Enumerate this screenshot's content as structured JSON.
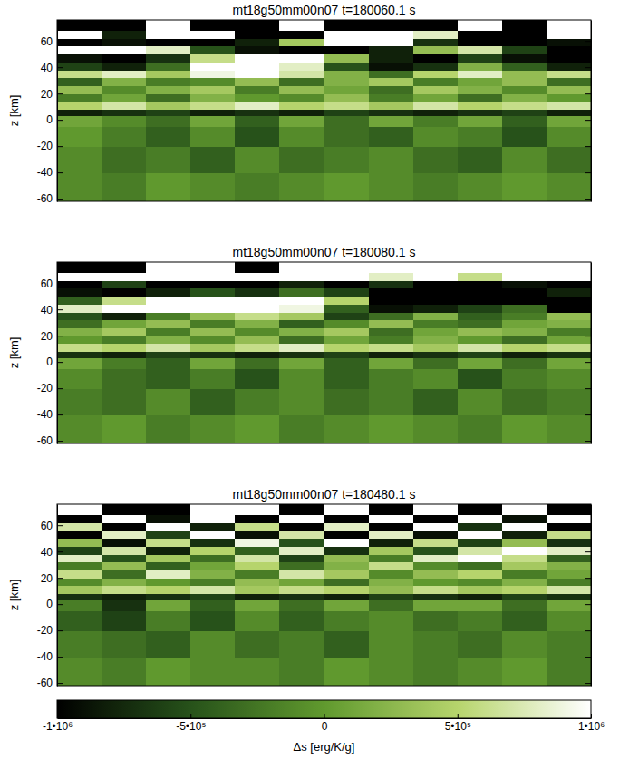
{
  "chart_data": [
    {
      "type": "heatmap",
      "title": "mt18g50mm00n07  t=180060.1 s",
      "y_label": "z [km]",
      "ylim": [
        -62,
        76
      ],
      "yticks": [
        -60,
        -40,
        -20,
        0,
        20,
        40,
        60
      ],
      "tick_labels": "y",
      "z_edges": [
        -62,
        -40,
        -20,
        -5,
        3,
        8,
        14,
        20,
        26,
        32,
        38,
        44,
        50,
        56,
        62,
        68,
        76
      ],
      "cells": [
        [
          -100000.0,
          -200000.0,
          0,
          -100000.0,
          -200000.0,
          -100000.0,
          0,
          -100000.0,
          -200000.0,
          -100000.0,
          0,
          -100000.0
        ],
        [
          -100000.0,
          -300000.0,
          -200000.0,
          -400000.0,
          -100000.0,
          -300000.0,
          -200000.0,
          -100000.0,
          -300000.0,
          -400000.0,
          -100000.0,
          -300000.0
        ],
        [
          0,
          -200000.0,
          -400000.0,
          -100000.0,
          -500000.0,
          -100000.0,
          -300000.0,
          -400000.0,
          -100000.0,
          -200000.0,
          -500000.0,
          -100000.0
        ],
        [
          100000.0,
          -100000.0,
          -300000.0,
          100000.0,
          -400000.0,
          100000.0,
          -300000.0,
          100000.0,
          -200000.0,
          100000.0,
          -400000.0,
          100000.0
        ],
        [
          -800000.0,
          -700000.0,
          -600000.0,
          -800000.0,
          -700000.0,
          -800000.0,
          -600000.0,
          -700000.0,
          -800000.0,
          -700000.0,
          -600000.0,
          -800000.0
        ],
        [
          500000.0,
          700000.0,
          400000.0,
          600000.0,
          800000.0,
          500000.0,
          600000.0,
          400000.0,
          700000.0,
          500000.0,
          600000.0,
          700000.0
        ],
        [
          -200000.0,
          100000.0,
          -300000.0,
          200000.0,
          0,
          -100000.0,
          300000.0,
          -200000.0,
          100000.0,
          -300000.0,
          200000.0,
          0
        ],
        [
          300000.0,
          -100000.0,
          200000.0,
          400000.0,
          -200000.0,
          300000.0,
          100000.0,
          -300000.0,
          400000.0,
          200000.0,
          -100000.0,
          300000.0
        ],
        [
          -400000.0,
          200000.0,
          -200000.0,
          -100000.0,
          300000.0,
          -300000.0,
          200000.0,
          400000.0,
          -200000.0,
          100000.0,
          300000.0,
          -300000.0
        ],
        [
          600000.0,
          800000.0,
          400000.0,
          900000.0,
          1000000.0,
          700000.0,
          200000.0,
          -300000.0,
          500000.0,
          800000.0,
          300000.0,
          600000.0
        ],
        [
          -600000.0,
          -800000.0,
          -300000.0,
          1000000.0,
          1000000.0,
          800000.0,
          -500000.0,
          -900000.0,
          -700000.0,
          200000.0,
          -400000.0,
          -800000.0
        ],
        [
          -900000.0,
          -1000000.0,
          -700000.0,
          600000.0,
          1000000.0,
          1000000.0,
          300000.0,
          -800000.0,
          -1000000.0,
          -600000.0,
          -900000.0,
          -1000000.0
        ],
        [
          1000000.0,
          1000000.0,
          800000.0,
          -500000.0,
          -900000.0,
          -1000000.0,
          -1000000.0,
          -800000.0,
          300000.0,
          700000.0,
          -600000.0,
          -1000000.0
        ],
        [
          -1000000.0,
          -900000.0,
          -1000000.0,
          -1000000.0,
          -800000.0,
          400000.0,
          1000000.0,
          1000000.0,
          -700000.0,
          -1000000.0,
          -1000000.0,
          -900000.0
        ],
        [
          1000000.0,
          -800000.0,
          1000000.0,
          1000000.0,
          -1000000.0,
          -1000000.0,
          1000000.0,
          1000000.0,
          800000.0,
          -1000000.0,
          -1000000.0,
          1000000.0
        ],
        [
          -1000000.0,
          -1000000.0,
          1000000.0,
          -1000000.0,
          -1000000.0,
          1000000.0,
          -1000000.0,
          -1000000.0,
          -1000000.0,
          1000000.0,
          -1000000.0,
          1000000.0
        ]
      ]
    },
    {
      "type": "heatmap",
      "title": "mt18g50mm00n07  t=180080.1 s",
      "y_label": "z [km]",
      "ylim": [
        -62,
        76
      ],
      "yticks": [
        -60,
        -40,
        -20,
        0,
        20,
        40,
        60
      ],
      "tick_labels": "y",
      "z_edges": [
        -62,
        -40,
        -20,
        -5,
        3,
        8,
        14,
        20,
        26,
        32,
        38,
        44,
        50,
        56,
        62,
        68,
        76
      ],
      "cells": [
        [
          -100000.0,
          0,
          -200000.0,
          -100000.0,
          0,
          -200000.0,
          -100000.0,
          0,
          -100000.0,
          -200000.0,
          0,
          -100000.0
        ],
        [
          -200000.0,
          -300000.0,
          -100000.0,
          -400000.0,
          -200000.0,
          -100000.0,
          -300000.0,
          -200000.0,
          -400000.0,
          -100000.0,
          -300000.0,
          -200000.0
        ],
        [
          -100000.0,
          -300000.0,
          -400000.0,
          -200000.0,
          -500000.0,
          -100000.0,
          -400000.0,
          -200000.0,
          -100000.0,
          -500000.0,
          -200000.0,
          -100000.0
        ],
        [
          100000.0,
          -200000.0,
          -400000.0,
          100000.0,
          -300000.0,
          100000.0,
          -400000.0,
          100000.0,
          -300000.0,
          100000.0,
          -300000.0,
          100000.0
        ],
        [
          -700000.0,
          -800000.0,
          -600000.0,
          -700000.0,
          -800000.0,
          -700000.0,
          -600000.0,
          -800000.0,
          -700000.0,
          -600000.0,
          -800000.0,
          -700000.0
        ],
        [
          600000.0,
          500000.0,
          700000.0,
          400000.0,
          600000.0,
          800000.0,
          500000.0,
          600000.0,
          400000.0,
          700000.0,
          500000.0,
          600000.0
        ],
        [
          0,
          -200000.0,
          200000.0,
          -100000.0,
          300000.0,
          -300000.0,
          100000.0,
          -200000.0,
          200000.0,
          0,
          -300000.0,
          100000.0
        ],
        [
          200000.0,
          400000.0,
          -200000.0,
          300000.0,
          -100000.0,
          200000.0,
          400000.0,
          -300000.0,
          100000.0,
          300000.0,
          200000.0,
          -200000.0
        ],
        [
          -300000.0,
          100000.0,
          300000.0,
          -200000.0,
          200000.0,
          -400000.0,
          -100000.0,
          300000.0,
          -200000.0,
          -300000.0,
          100000.0,
          200000.0
        ],
        [
          -500000.0,
          -800000.0,
          -200000.0,
          300000.0,
          600000.0,
          400000.0,
          -600000.0,
          -300000.0,
          200000.0,
          -400000.0,
          -200000.0,
          300000.0
        ],
        [
          800000.0,
          1000000.0,
          1000000.0,
          1000000.0,
          1000000.0,
          900000.0,
          -400000.0,
          -900000.0,
          -800000.0,
          -600000.0,
          -300000.0,
          -1000000.0
        ],
        [
          -400000.0,
          600000.0,
          1000000.0,
          1000000.0,
          1000000.0,
          1000000.0,
          500000.0,
          -1000000.0,
          -1000000.0,
          -1000000.0,
          -1000000.0,
          -1000000.0
        ],
        [
          -900000.0,
          -1000000.0,
          -800000.0,
          -500000.0,
          -700000.0,
          -300000.0,
          -600000.0,
          -1000000.0,
          -1000000.0,
          -1000000.0,
          -1000000.0,
          -800000.0
        ],
        [
          -1000000.0,
          -600000.0,
          -1000000.0,
          -1000000.0,
          -1000000.0,
          -800000.0,
          -1000000.0,
          -700000.0,
          -1000000.0,
          -1000000.0,
          -900000.0,
          -1000000.0
        ],
        [
          1000000.0,
          1000000.0,
          1000000.0,
          1000000.0,
          1000000.0,
          1000000.0,
          1000000.0,
          800000.0,
          1000000.0,
          600000.0,
          1000000.0,
          1000000.0
        ],
        [
          -1000000.0,
          -1000000.0,
          1000000.0,
          1000000.0,
          -1000000.0,
          1000000.0,
          1000000.0,
          1000000.0,
          1000000.0,
          1000000.0,
          1000000.0,
          1000000.0
        ]
      ]
    },
    {
      "type": "heatmap",
      "title": "mt18g50mm00n07  t=180480.1 s",
      "y_label": "z [km]",
      "ylim": [
        -62,
        76
      ],
      "yticks": [
        -60,
        -40,
        -20,
        0,
        20,
        40,
        60
      ],
      "tick_labels": "y",
      "z_edges": [
        -62,
        -40,
        -20,
        -5,
        3,
        8,
        14,
        20,
        26,
        32,
        38,
        44,
        50,
        56,
        62,
        68,
        76
      ],
      "cells": [
        [
          -100000.0,
          -200000.0,
          0,
          -100000.0,
          -100000.0,
          -200000.0,
          0,
          -100000.0,
          -200000.0,
          -100000.0,
          0,
          -200000.0
        ],
        [
          -200000.0,
          -300000.0,
          -400000.0,
          -100000.0,
          -300000.0,
          -200000.0,
          -400000.0,
          -100000.0,
          -200000.0,
          -300000.0,
          -100000.0,
          -200000.0
        ],
        [
          -400000.0,
          -600000.0,
          -200000.0,
          -500000.0,
          -100000.0,
          -400000.0,
          -200000.0,
          -100000.0,
          -300000.0,
          -200000.0,
          -400000.0,
          -100000.0
        ],
        [
          -200000.0,
          -700000.0,
          100000.0,
          -400000.0,
          100000.0,
          -300000.0,
          100000.0,
          -300000.0,
          100000.0,
          100000.0,
          -300000.0,
          100000.0
        ],
        [
          -700000.0,
          -800000.0,
          -700000.0,
          -600000.0,
          -800000.0,
          -700000.0,
          -800000.0,
          -600000.0,
          -700000.0,
          -800000.0,
          -600000.0,
          -700000.0
        ],
        [
          400000.0,
          600000.0,
          500000.0,
          700000.0,
          400000.0,
          600000.0,
          500000.0,
          300000.0,
          600000.0,
          400000.0,
          500000.0,
          700000.0
        ],
        [
          -100000.0,
          200000.0,
          0,
          -200000.0,
          300000.0,
          100000.0,
          -300000.0,
          200000.0,
          0,
          -100000.0,
          200000.0,
          -200000.0
        ],
        [
          600000.0,
          -300000.0,
          800000.0,
          200000.0,
          -200000.0,
          700000.0,
          400000.0,
          -100000.0,
          300000.0,
          500000.0,
          -200000.0,
          100000.0
        ],
        [
          -200000.0,
          300000.0,
          -400000.0,
          100000.0,
          500000.0,
          -300000.0,
          200000.0,
          600000.0,
          -100000.0,
          -300000.0,
          400000.0,
          200000.0
        ],
        [
          800000.0,
          -500000.0,
          400000.0,
          -300000.0,
          700000.0,
          -600000.0,
          300000.0,
          -200000.0,
          800000.0,
          1000000.0,
          600000.0,
          -400000.0
        ],
        [
          -600000.0,
          700000.0,
          -800000.0,
          500000.0,
          -400000.0,
          800000.0,
          -700000.0,
          400000.0,
          -500000.0,
          700000.0,
          1000000.0,
          800000.0
        ],
        [
          300000.0,
          -900000.0,
          600000.0,
          -700000.0,
          900000.0,
          -500000.0,
          1000000.0,
          -800000.0,
          600000.0,
          -600000.0,
          300000.0,
          -700000.0
        ],
        [
          -1000000.0,
          800000.0,
          -600000.0,
          1000000.0,
          -900000.0,
          700000.0,
          -1000000.0,
          800000.0,
          -900000.0,
          1000000.0,
          -800000.0,
          600000.0
        ],
        [
          700000.0,
          -1000000.0,
          1000000.0,
          -800000.0,
          600000.0,
          -1000000.0,
          800000.0,
          -1000000.0,
          1000000.0,
          -700000.0,
          1000000.0,
          -1000000.0
        ],
        [
          -1000000.0,
          1000000.0,
          -900000.0,
          1000000.0,
          -1000000.0,
          1000000.0,
          -1000000.0,
          1000000.0,
          -1000000.0,
          1000000.0,
          -900000.0,
          1000000.0
        ],
        [
          1000000.0,
          -1000000.0,
          -1000000.0,
          1000000.0,
          1000000.0,
          -1000000.0,
          1000000.0,
          -1000000.0,
          1000000.0,
          -1000000.0,
          1000000.0,
          -1000000.0
        ]
      ],
      "colorbar": {
        "label": "Δs [erg/K/g]",
        "range": [
          -1000000.0,
          1000000.0
        ],
        "ticks": [
          {
            "value": -1000000.0,
            "label": "-1•10⁶"
          },
          {
            "value": -500000.0,
            "label": "-5•10⁵"
          },
          0,
          {
            "value": 500000.0,
            "label": "5•10⁵"
          },
          {
            "value": 1000000.0,
            "label": "1•10⁶"
          }
        ]
      }
    }
  ]
}
